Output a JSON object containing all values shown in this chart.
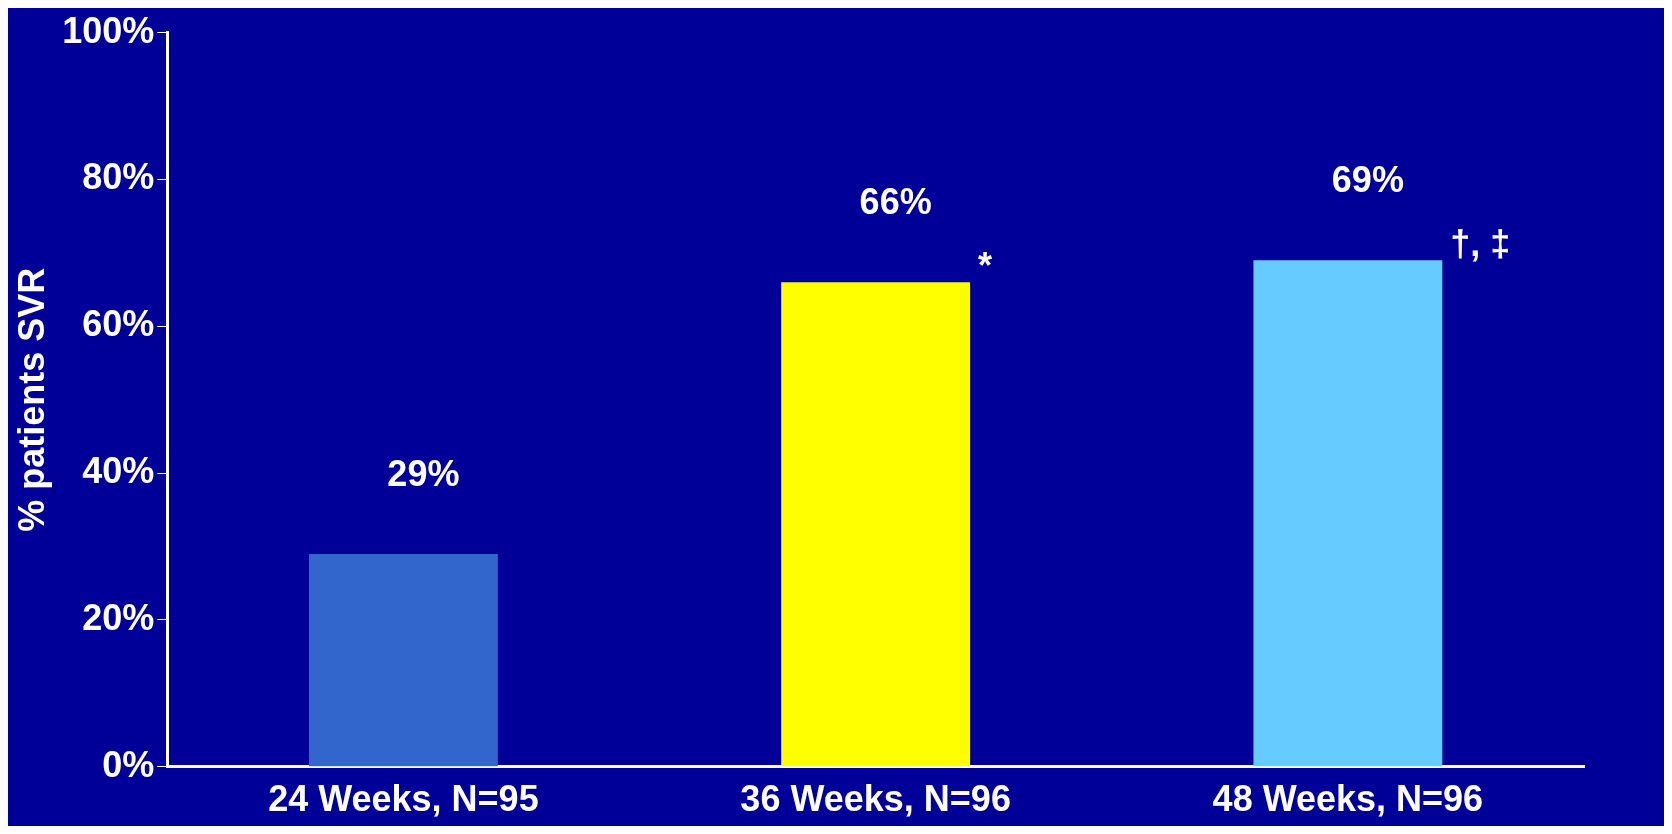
{
  "chart_data": {
    "type": "bar",
    "ylabel": "% patients SVR",
    "categories": [
      "24 Weeks, N=95",
      "36 Weeks, N=96",
      "48 Weeks, N=96"
    ],
    "values": [
      29,
      66,
      69
    ],
    "colors": [
      "#3366cc",
      "#ffff00",
      "#66ccff"
    ],
    "value_labels": [
      "29%",
      "66%",
      "69%"
    ],
    "ylim": [
      0,
      100
    ],
    "yticks": [
      {
        "value": 0,
        "label": "0%"
      },
      {
        "value": 20,
        "label": "20%"
      },
      {
        "value": 40,
        "label": "40%"
      },
      {
        "value": 60,
        "label": "60%"
      },
      {
        "value": 80,
        "label": "80%"
      },
      {
        "value": 100,
        "label": "100%"
      }
    ],
    "grid": false,
    "legend": false,
    "annotations": [
      {
        "text": "*",
        "x": "36 Weeks, N=96",
        "y": 66
      },
      {
        "text": "†, ‡",
        "x": "48 Weeks, N=96",
        "y": 69
      }
    ]
  }
}
